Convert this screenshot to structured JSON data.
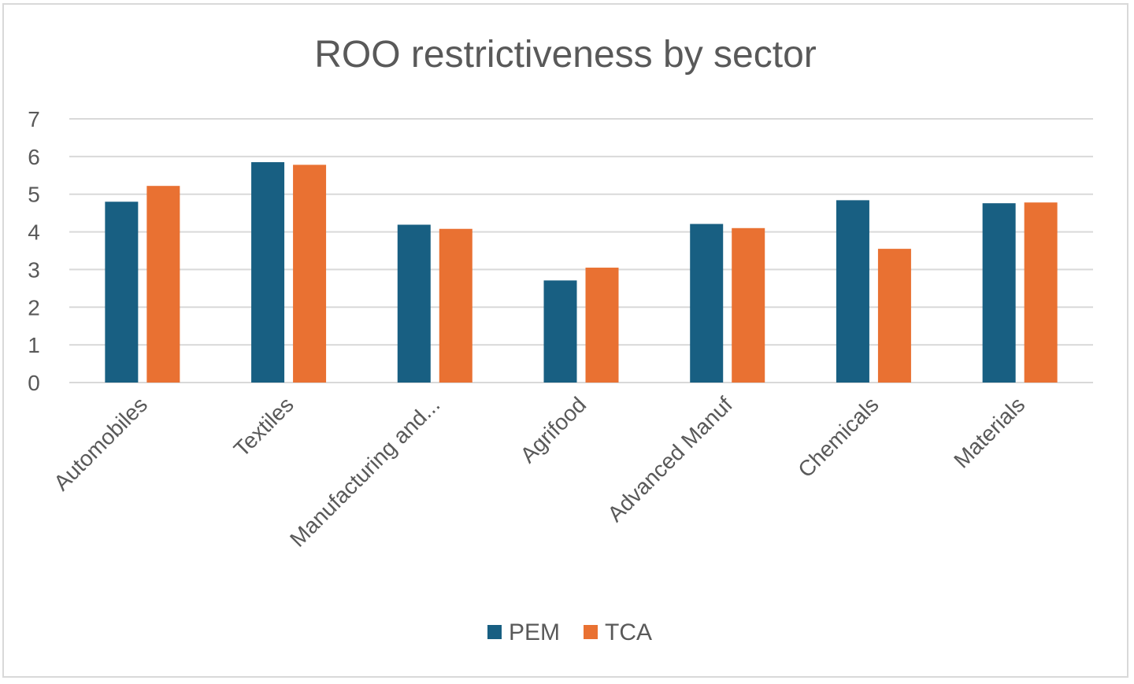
{
  "chart_data": {
    "type": "bar",
    "title": "ROO restrictiveness by sector",
    "xlabel": "",
    "ylabel": "",
    "categories": [
      "Automobiles",
      "Textiles",
      "Manufacturing and...",
      "Agrifood",
      "Advanced Manuf",
      "Chemicals",
      "Materials"
    ],
    "series": [
      {
        "name": "PEM",
        "color": "#185f82",
        "values": [
          4.8,
          5.85,
          4.19,
          2.71,
          4.21,
          4.84,
          4.76
        ]
      },
      {
        "name": "TCA",
        "color": "#e97132",
        "values": [
          5.22,
          5.78,
          4.08,
          3.05,
          4.1,
          3.55,
          4.78
        ]
      }
    ],
    "ylim": [
      0,
      7
    ],
    "yticks": [
      0,
      1,
      2,
      3,
      4,
      5,
      6,
      7
    ],
    "grid": true,
    "legend_position": "bottom"
  }
}
